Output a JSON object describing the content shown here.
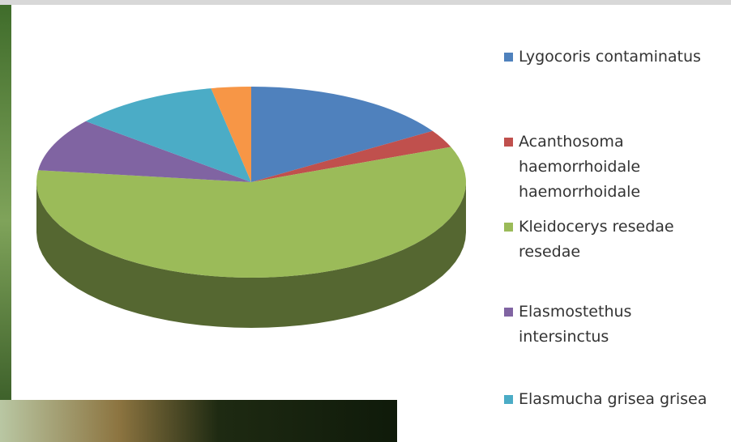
{
  "chart_data": {
    "type": "pie",
    "categories": [
      "Lygocoris contaminatus",
      "Acanthosoma haemorrhoidale haemorrhoidale",
      "Kleidocerys resedae resedae",
      "Elasmostethus intersinctus",
      "Elasmucha grisea grisea",
      null
    ],
    "values": [
      16,
      3,
      58,
      9,
      11,
      3
    ],
    "colors": [
      "#4f81bd",
      "#c0504d",
      "#9bbb59",
      "#8064a2",
      "#4bacc6",
      "#f79646"
    ]
  }
}
